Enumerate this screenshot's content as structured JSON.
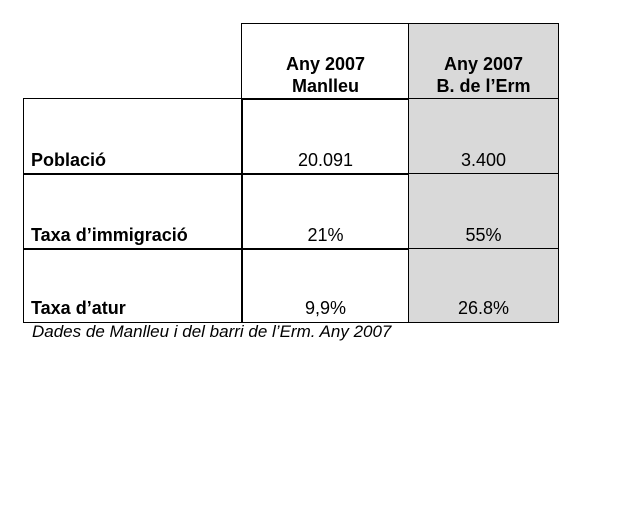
{
  "table": {
    "header": [
      [
        "Any 2007",
        "Manlleu"
      ],
      [
        "Any 2007",
        "B. de l’Erm"
      ]
    ],
    "rows": [
      [
        "Població",
        "20.091",
        "3.400"
      ],
      [
        "Taxa d’immigració",
        "21%",
        "55%"
      ],
      [
        "Taxa d’atur",
        "9,9%",
        "26.8%"
      ]
    ]
  },
  "caption": "Dades de Manlleu i del barri de l’Erm. Any 2007"
}
